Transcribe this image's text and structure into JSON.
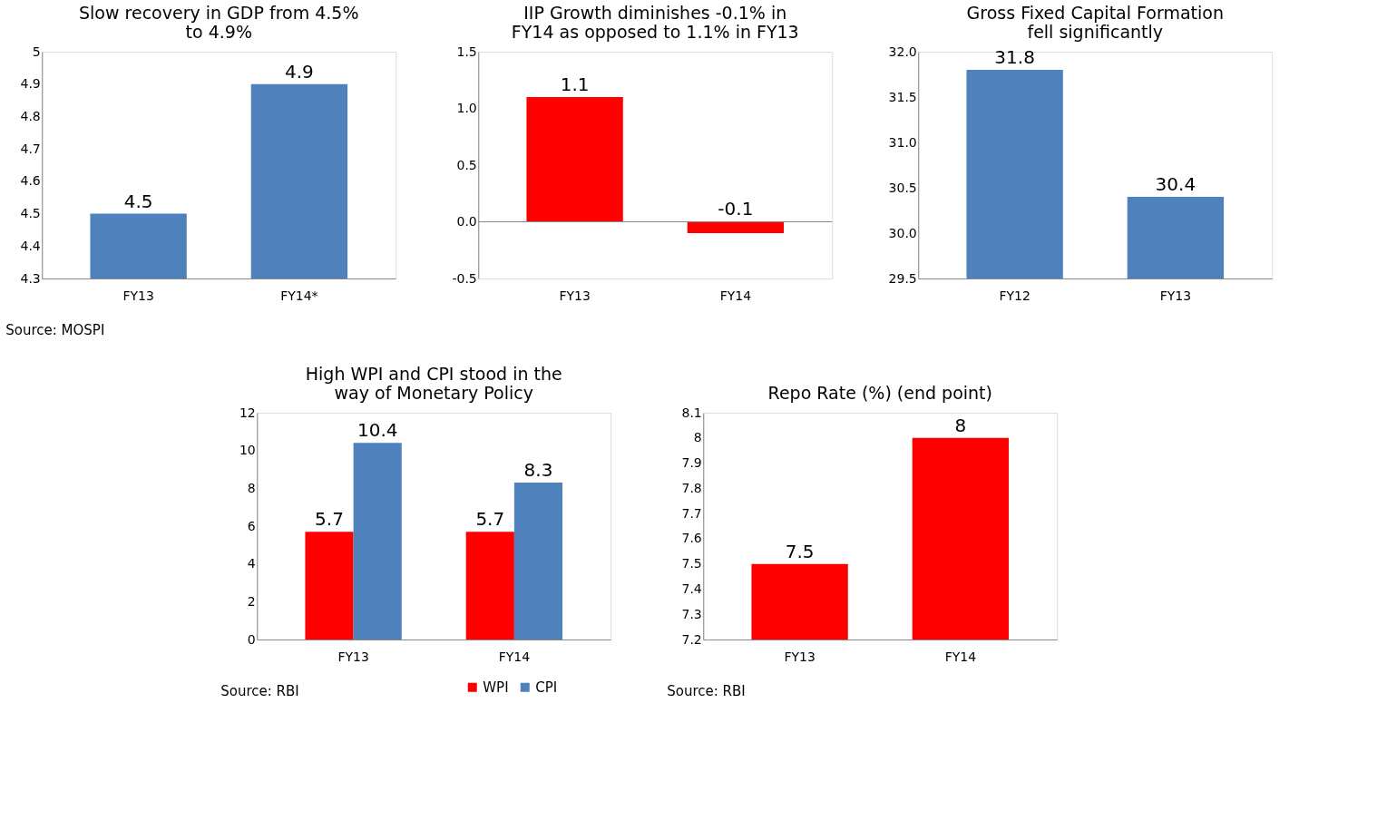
{
  "chart_data": [
    {
      "type": "bar",
      "title": "Slow recovery in GDP from 4.5% to 4.9%",
      "categories": [
        "FY13",
        "FY14*"
      ],
      "values": [
        4.5,
        4.9
      ],
      "color": "#4f81bd",
      "ylim": [
        4.3,
        5
      ],
      "yticks": [
        4.3,
        4.4,
        4.5,
        4.6,
        4.7,
        4.8,
        4.9,
        5
      ],
      "data_labels": true,
      "annotations": [
        "Source: MOSPI"
      ]
    },
    {
      "type": "bar",
      "title": "IIP Growth diminishes -0.1% in FY14 as opposed to 1.1% in FY13",
      "categories": [
        "FY13",
        "FY14"
      ],
      "values": [
        1.1,
        -0.1
      ],
      "color": "#ff0000",
      "ylim": [
        -0.5,
        1.5
      ],
      "yticks": [
        {
          "value": -0.5,
          "label": "-0.5"
        },
        {
          "value": 0,
          "label": "0.0"
        },
        {
          "value": 0.5,
          "label": "0.5"
        },
        {
          "value": 1,
          "label": "1.0"
        },
        {
          "value": 1.5,
          "label": "1.5"
        }
      ],
      "data_labels": true
    },
    {
      "type": "bar",
      "title": "Gross Fixed Capital Formation fell significantly",
      "categories": [
        "FY12",
        "FY13"
      ],
      "values": [
        31.8,
        30.4
      ],
      "color": "#4f81bd",
      "ylim": [
        29.5,
        32
      ],
      "yticks": [
        29.5,
        {
          "value": 30,
          "label": "30.0"
        },
        30.5,
        {
          "value": 31,
          "label": "31.0"
        },
        31.5,
        {
          "value": 32,
          "label": "32.0"
        }
      ],
      "data_labels": true
    },
    {
      "type": "bar",
      "title": "High WPI and CPI stood in the way of Monetary Policy",
      "categories": [
        "FY13",
        "FY14"
      ],
      "series": [
        {
          "name": "WPI",
          "color": "#ff0000",
          "values": [
            5.7,
            5.7
          ]
        },
        {
          "name": "CPI",
          "color": "#4f81bd",
          "values": [
            10.4,
            8.3
          ]
        }
      ],
      "ylim": [
        0,
        12
      ],
      "yticks": [
        0,
        2,
        4,
        6,
        8,
        10,
        12
      ],
      "data_labels": true,
      "legend": "bottom",
      "annotations": [
        "Source: RBI"
      ]
    },
    {
      "type": "bar",
      "title": "Repo Rate (%) (end point)",
      "categories": [
        "FY13",
        "FY14"
      ],
      "values": [
        7.5,
        8
      ],
      "color": "#ff0000",
      "ylim": [
        7.2,
        8.1
      ],
      "yticks": [
        7.2,
        7.3,
        7.4,
        7.5,
        7.6,
        7.7,
        7.8,
        7.9,
        8,
        8.1
      ],
      "data_labels": true,
      "annotations": [
        "Source: RBI"
      ]
    }
  ]
}
